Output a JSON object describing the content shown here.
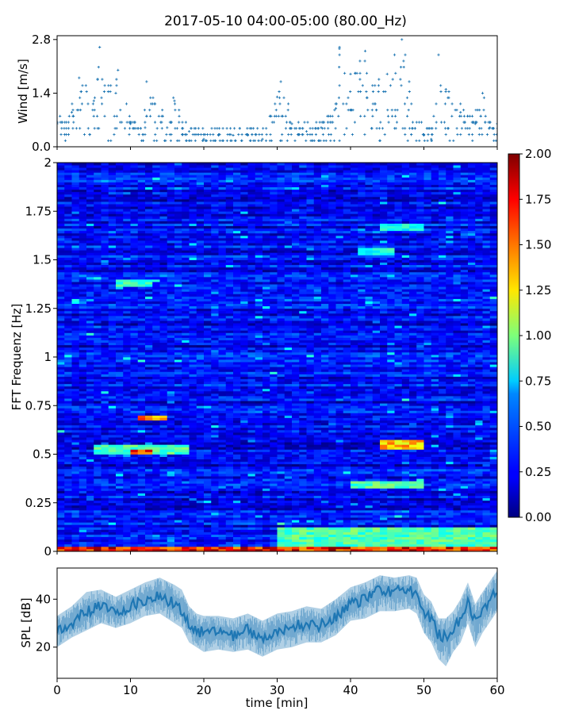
{
  "title": "2017-05-10 04:00-05:00 (80.00_Hz)",
  "colors": {
    "series": "#1f77b4",
    "axis": "#000000",
    "background": "#ffffff"
  },
  "chart_data": [
    {
      "id": "wind",
      "type": "scatter",
      "ylabel": "Wind [m/s]",
      "xlim": [
        0,
        60
      ],
      "ylim": [
        0,
        2.9
      ],
      "yticks": [
        0.0,
        1.4,
        2.8
      ],
      "ytick_labels": [
        "0.0",
        "1.4",
        "2.8"
      ],
      "marker": "+",
      "sample_points": [
        [
          0,
          0.6
        ],
        [
          2,
          0.9
        ],
        [
          3,
          1.8
        ],
        [
          5,
          1.2
        ],
        [
          5.8,
          2.6
        ],
        [
          8,
          1.4
        ],
        [
          8.3,
          2.0
        ],
        [
          10,
          0.6
        ],
        [
          12,
          0.5
        ],
        [
          12.2,
          1.7
        ],
        [
          15,
          0.5
        ],
        [
          16,
          1.2
        ],
        [
          18,
          0.4
        ],
        [
          20,
          0.2
        ],
        [
          22,
          0.3
        ],
        [
          24,
          0.3
        ],
        [
          26,
          0.3
        ],
        [
          28,
          0.2
        ],
        [
          29,
          0.8
        ],
        [
          30,
          1.3
        ],
        [
          30.5,
          1.7
        ],
        [
          32,
          0.6
        ],
        [
          34,
          0.4
        ],
        [
          36,
          0.5
        ],
        [
          37,
          0.8
        ],
        [
          38,
          1.0
        ],
        [
          38.5,
          2.6
        ],
        [
          40,
          1.9
        ],
        [
          42,
          2.5
        ],
        [
          43,
          1.6
        ],
        [
          45,
          1.9
        ],
        [
          46,
          2.4
        ],
        [
          47,
          2.8
        ],
        [
          48,
          1.7
        ],
        [
          50,
          0.3
        ],
        [
          51,
          0.2
        ],
        [
          52,
          2.4
        ],
        [
          53,
          1.5
        ],
        [
          55,
          0.9
        ],
        [
          57,
          0.6
        ],
        [
          58,
          1.4
        ],
        [
          59,
          0.5
        ],
        [
          60,
          0.6
        ]
      ]
    },
    {
      "id": "spectrogram",
      "type": "heatmap",
      "ylabel": "FFT Frequenz [Hz]",
      "xlim": [
        0,
        60
      ],
      "ylim": [
        0,
        2
      ],
      "yticks": [
        0,
        0.25,
        0.5,
        0.75,
        1,
        1.25,
        1.5,
        1.75,
        2
      ],
      "ytick_labels": [
        "0",
        "0.25",
        "0.5",
        "0.75",
        "1",
        "1.25",
        "1.5",
        "1.75",
        "2"
      ],
      "colormap": "jet",
      "baseline_level": 0.25,
      "hotspots": [
        {
          "t0": 10,
          "t1": 13,
          "f0": 0.5,
          "f1": 0.53,
          "level": 1.85
        },
        {
          "t0": 11,
          "t1": 15,
          "f0": 0.67,
          "f1": 0.7,
          "level": 1.7
        },
        {
          "t0": 5,
          "t1": 18,
          "f0": 0.5,
          "f1": 0.55,
          "level": 1.0
        },
        {
          "t0": 44,
          "t1": 50,
          "f0": 0.53,
          "f1": 0.57,
          "level": 1.5
        },
        {
          "t0": 40,
          "t1": 50,
          "f0": 0.33,
          "f1": 0.36,
          "level": 1.0
        },
        {
          "t0": 0,
          "t1": 60,
          "f0": 0.0,
          "f1": 0.03,
          "level": 1.9
        },
        {
          "t0": 30,
          "t1": 60,
          "f0": 0.03,
          "f1": 0.12,
          "level": 1.0
        },
        {
          "t0": 8,
          "t1": 13,
          "f0": 1.36,
          "f1": 1.4,
          "level": 0.95
        },
        {
          "t0": 41,
          "t1": 46,
          "f0": 1.52,
          "f1": 1.56,
          "level": 0.9
        },
        {
          "t0": 44,
          "t1": 50,
          "f0": 1.65,
          "f1": 1.69,
          "level": 0.85
        }
      ]
    },
    {
      "id": "spl",
      "type": "area",
      "ylabel": "SPL [dB]",
      "xlabel": "time [min]",
      "xlim": [
        0,
        60
      ],
      "ylim": [
        7,
        53
      ],
      "xticks": [
        0,
        10,
        20,
        30,
        40,
        50,
        60
      ],
      "xtick_labels": [
        "0",
        "10",
        "20",
        "30",
        "40",
        "50",
        "60"
      ],
      "yticks": [
        20,
        40
      ],
      "ytick_labels": [
        "20",
        "40"
      ],
      "x": [
        0,
        2,
        4,
        6,
        8,
        10,
        12,
        14,
        16,
        17,
        18,
        19,
        20,
        22,
        24,
        26,
        28,
        30,
        32,
        34,
        36,
        38,
        40,
        42,
        44,
        46,
        48,
        49,
        50,
        51,
        52,
        53,
        54,
        55,
        56,
        57,
        58,
        60
      ],
      "mean": [
        27,
        30,
        35,
        37,
        34,
        37,
        40,
        42,
        38,
        36,
        30,
        27,
        26,
        26,
        25,
        27,
        24,
        27,
        28,
        30,
        29,
        33,
        38,
        40,
        44,
        43,
        44,
        42,
        35,
        32,
        25,
        24,
        28,
        32,
        40,
        30,
        35,
        44
      ],
      "lower": [
        20,
        24,
        27,
        30,
        28,
        30,
        33,
        34,
        30,
        28,
        22,
        20,
        18,
        19,
        18,
        19,
        16,
        19,
        20,
        22,
        22,
        25,
        31,
        32,
        35,
        35,
        36,
        34,
        26,
        22,
        15,
        12,
        18,
        22,
        30,
        20,
        26,
        35
      ],
      "upper": [
        33,
        37,
        43,
        44,
        41,
        44,
        47,
        49,
        46,
        44,
        37,
        34,
        33,
        33,
        32,
        34,
        31,
        34,
        35,
        37,
        36,
        40,
        45,
        47,
        50,
        49,
        50,
        49,
        42,
        39,
        32,
        32,
        35,
        40,
        47,
        38,
        43,
        52
      ]
    },
    {
      "id": "colorbar",
      "type": "heatmap",
      "colormap": "jet",
      "range": [
        0.0,
        2.0
      ],
      "ticks": [
        0.0,
        0.25,
        0.5,
        0.75,
        1.0,
        1.25,
        1.5,
        1.75,
        2.0
      ],
      "tick_labels": [
        "0.00",
        "0.25",
        "0.50",
        "0.75",
        "1.00",
        "1.25",
        "1.50",
        "1.75",
        "2.00"
      ]
    }
  ]
}
